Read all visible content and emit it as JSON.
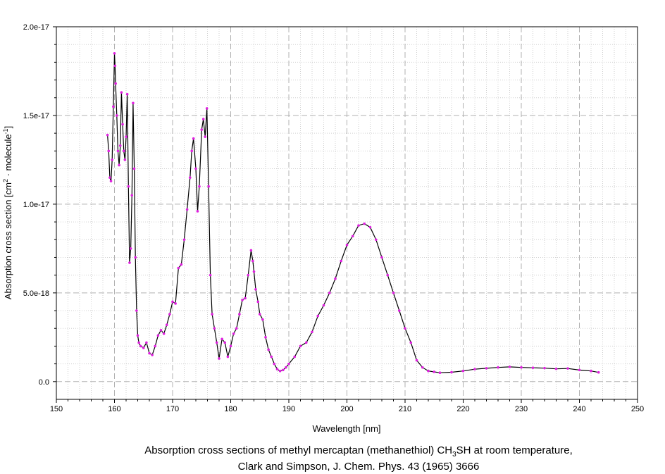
{
  "chart_data": {
    "type": "line",
    "xlabel": "Wavelength [nm]",
    "ylabel": {
      "main": "Absorption cross section [cm",
      "sup1": "2",
      "mid": " · molecule",
      "sup2": "-1",
      "end": "]"
    },
    "xlim": [
      150,
      250
    ],
    "ylim": [
      -1e-18,
      2e-17
    ],
    "x_ticks": [
      150,
      160,
      170,
      180,
      190,
      200,
      210,
      220,
      230,
      240,
      250
    ],
    "x_tick_labels": [
      "150",
      "160",
      "170",
      "180",
      "190",
      "200",
      "210",
      "220",
      "230",
      "240",
      "250"
    ],
    "y_ticks": [
      0,
      5e-18,
      1e-17,
      1.5e-17,
      2e-17
    ],
    "y_tick_labels": [
      "0.0",
      "5.0e-18",
      "1.0e-17",
      "1.5e-17",
      "2.0e-17"
    ],
    "grid": true,
    "line_color": "#000000",
    "marker_color": "#e020e0",
    "series": [
      {
        "x": [
          158.8,
          159.0,
          159.2,
          159.4,
          159.6,
          159.8,
          160.0,
          160.1,
          160.2,
          160.4,
          160.6,
          160.8,
          161.0,
          161.2,
          161.4,
          161.6,
          161.8,
          162.0,
          162.2,
          162.4,
          162.6,
          162.8,
          163.0,
          163.2,
          163.4,
          163.6,
          163.8,
          164.0,
          164.2,
          164.5,
          165.0,
          165.5,
          166.0,
          166.5,
          167.0,
          167.5,
          168.0,
          168.5,
          169.0,
          169.5,
          170.0,
          170.5,
          171.0,
          171.5,
          172.0,
          172.5,
          173.0,
          173.3,
          173.6,
          174.0,
          174.3,
          174.6,
          175.0,
          175.3,
          175.6,
          175.9,
          176.2,
          176.5,
          176.8,
          177.2,
          177.6,
          178.0,
          178.5,
          179.0,
          179.5,
          180.0,
          180.5,
          181.0,
          181.5,
          182.0,
          182.5,
          183.0,
          183.5,
          183.8,
          184.0,
          184.3,
          184.7,
          185.0,
          185.5,
          186.0,
          186.5,
          187.0,
          187.5,
          188.0,
          188.5,
          189.0,
          189.5,
          190.0,
          191.0,
          192.0,
          193.0,
          194.0,
          195.0,
          196.0,
          197.0,
          198.0,
          199.0,
          200.0,
          201.0,
          202.0,
          203.0,
          204.0,
          205.0,
          206.0,
          207.0,
          208.0,
          209.0,
          210.0,
          211.0,
          212.0,
          213.0,
          214.0,
          215.0,
          216.0,
          218.0,
          220.0,
          222.0,
          224.0,
          226.0,
          228.0,
          230.0,
          232.0,
          234.0,
          236.0,
          238.0,
          240.0,
          242.0,
          243.3
        ],
        "y": [
          1.39e-17,
          1.3e-17,
          1.15e-17,
          1.13e-17,
          1.25e-17,
          1.55e-17,
          1.85e-17,
          1.78e-17,
          1.68e-17,
          1.5e-17,
          1.3e-17,
          1.22e-17,
          1.33e-17,
          1.63e-17,
          1.45e-17,
          1.3e-17,
          1.25e-17,
          1.38e-17,
          1.62e-17,
          1.1e-17,
          6.7e-18,
          7.5e-18,
          1.05e-17,
          1.57e-17,
          1.2e-17,
          7e-18,
          4e-18,
          2.6e-18,
          2.2e-18,
          2e-18,
          1.9e-18,
          2.2e-18,
          1.6e-18,
          1.5e-18,
          2e-18,
          2.6e-18,
          2.9e-18,
          2.7e-18,
          3.2e-18,
          3.8e-18,
          4.5e-18,
          4.4e-18,
          6.4e-18,
          6.6e-18,
          8e-18,
          9.7e-18,
          1.15e-17,
          1.3e-17,
          1.37e-17,
          1.2e-17,
          9.6e-18,
          1.1e-17,
          1.42e-17,
          1.48e-17,
          1.38e-17,
          1.54e-17,
          1.1e-17,
          6e-18,
          3.8e-18,
          3e-18,
          2.2e-18,
          1.3e-18,
          2.4e-18,
          2.2e-18,
          1.4e-18,
          2e-18,
          2.7e-18,
          3e-18,
          3.8e-18,
          4.6e-18,
          4.7e-18,
          6e-18,
          7.4e-18,
          6.8e-18,
          6.2e-18,
          5.2e-18,
          4.5e-18,
          3.8e-18,
          3.5e-18,
          2.5e-18,
          1.8e-18,
          1.4e-18,
          1e-18,
          7e-19,
          6e-19,
          6.5e-19,
          8e-19,
          1e-18,
          1.4e-18,
          2e-18,
          2.2e-18,
          2.8e-18,
          3.7e-18,
          4.3e-18,
          5e-18,
          5.8e-18,
          6.8e-18,
          7.7e-18,
          8.2e-18,
          8.8e-18,
          8.9e-18,
          8.7e-18,
          8e-18,
          7e-18,
          6e-18,
          5e-18,
          4e-18,
          3e-18,
          2.2e-18,
          1.2e-18,
          8e-19,
          6e-19,
          5.5e-19,
          5e-19,
          5.3e-19,
          6e-19,
          7e-19,
          7.5e-19,
          8e-19,
          8.3e-19,
          8e-19,
          7.8e-19,
          7.6e-19,
          7.2e-19,
          7.4e-19,
          6.5e-19,
          6e-19,
          5.2e-19
        ]
      }
    ]
  },
  "caption": {
    "line1_prefix": "Absorption cross sections of methyl mercaptan (methanethiol) CH",
    "line1_sub": "3",
    "line1_suffix": "SH at room temperature,",
    "line2": "Clark and Simpson, J. Chem. Phys. 43 (1965) 3666"
  }
}
